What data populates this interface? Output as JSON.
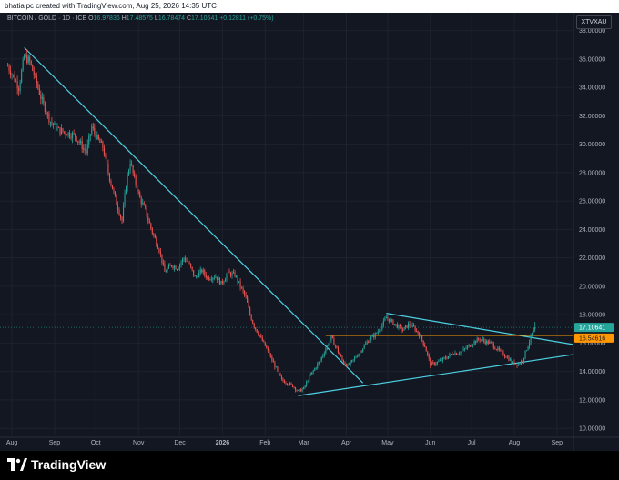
{
  "header": {
    "caption": "bhatiaipc created with TradingView.com, Aug 25, 2026 14:35 UTC"
  },
  "symbol": {
    "name": "BITCOIN / GOLD · 1D · ICE",
    "open_label": "O",
    "open": "16.97836",
    "high_label": "H",
    "high": "17.48575",
    "low_label": "L",
    "low": "16.78474",
    "close_label": "C",
    "close": "17.10641",
    "change": "+0.12811 (+0.75%)",
    "ticker": "XTVXAU"
  },
  "footer": {
    "brand": "TradingView"
  },
  "colors": {
    "background": "#131722",
    "up": "#26a69a",
    "down": "#ef5350",
    "trendline": "#4dd0e1",
    "support": "#ff9800",
    "price_badge": "#26a69a"
  },
  "chart_data": {
    "type": "candlestick",
    "title": "BITCOIN / GOLD · 1D · ICE",
    "xlabel": "",
    "ylabel": "",
    "ylim": [
      9.5,
      39.0
    ],
    "y_ticks": [
      "38.00000",
      "36.00000",
      "34.00000",
      "32.00000",
      "30.00000",
      "28.00000",
      "26.00000",
      "24.00000",
      "22.00000",
      "20.00000",
      "18.00000",
      "16.00000",
      "14.00000",
      "12.00000",
      "10.00000"
    ],
    "x_ticks": [
      {
        "label": "Aug",
        "day": 0
      },
      {
        "label": "Sep",
        "day": 31
      },
      {
        "label": "Oct",
        "day": 61
      },
      {
        "label": "Nov",
        "day": 92
      },
      {
        "label": "Dec",
        "day": 122
      },
      {
        "label": "2026",
        "day": 153
      },
      {
        "label": "Feb",
        "day": 184
      },
      {
        "label": "Mar",
        "day": 212
      },
      {
        "label": "Apr",
        "day": 243
      },
      {
        "label": "May",
        "day": 273
      },
      {
        "label": "Jun",
        "day": 304
      },
      {
        "label": "Jul",
        "day": 334
      },
      {
        "label": "Aug",
        "day": 365
      },
      {
        "label": "Sep",
        "day": 396
      }
    ],
    "x_range_days": [
      -6,
      408
    ],
    "grid": true,
    "price_path": [
      [
        -3,
        35.5
      ],
      [
        2,
        34.6
      ],
      [
        5,
        34.0
      ],
      [
        9,
        36.2
      ],
      [
        13,
        35.8
      ],
      [
        17,
        34.6
      ],
      [
        22,
        33.0
      ],
      [
        28,
        31.6
      ],
      [
        34,
        31.0
      ],
      [
        40,
        30.8
      ],
      [
        46,
        30.6
      ],
      [
        50,
        30.0
      ],
      [
        54,
        29.4
      ],
      [
        58,
        31.2
      ],
      [
        62,
        30.4
      ],
      [
        66,
        29.8
      ],
      [
        70,
        28.0
      ],
      [
        75,
        26.2
      ],
      [
        80,
        24.6
      ],
      [
        83,
        27.2
      ],
      [
        86,
        28.8
      ],
      [
        89,
        27.5
      ],
      [
        93,
        26.2
      ],
      [
        97,
        25.3
      ],
      [
        102,
        23.8
      ],
      [
        107,
        22.6
      ],
      [
        111,
        21.0
      ],
      [
        116,
        21.5
      ],
      [
        120,
        21.3
      ],
      [
        125,
        22.0
      ],
      [
        129,
        21.5
      ],
      [
        133,
        20.6
      ],
      [
        138,
        21.1
      ],
      [
        142,
        20.6
      ],
      [
        148,
        20.7
      ],
      [
        152,
        20.2
      ],
      [
        157,
        20.9
      ],
      [
        162,
        20.8
      ],
      [
        166,
        20.0
      ],
      [
        170,
        19.2
      ],
      [
        173,
        18.0
      ],
      [
        176,
        17.2
      ],
      [
        180,
        16.5
      ],
      [
        184,
        15.8
      ],
      [
        188,
        15.0
      ],
      [
        192,
        14.2
      ],
      [
        196,
        13.4
      ],
      [
        200,
        13.2
      ],
      [
        204,
        13.0
      ],
      [
        208,
        12.6
      ],
      [
        212,
        12.8
      ],
      [
        216,
        13.6
      ],
      [
        220,
        14.2
      ],
      [
        224,
        14.8
      ],
      [
        228,
        15.6
      ],
      [
        232,
        16.4
      ],
      [
        236,
        15.6
      ],
      [
        240,
        14.8
      ],
      [
        244,
        14.4
      ],
      [
        248,
        14.8
      ],
      [
        252,
        15.3
      ],
      [
        256,
        15.8
      ],
      [
        260,
        16.3
      ],
      [
        264,
        16.6
      ],
      [
        268,
        17.1
      ],
      [
        272,
        17.8
      ],
      [
        276,
        17.5
      ],
      [
        280,
        17.2
      ],
      [
        284,
        16.9
      ],
      [
        288,
        17.3
      ],
      [
        292,
        17.1
      ],
      [
        296,
        16.6
      ],
      [
        300,
        15.8
      ],
      [
        304,
        14.5
      ],
      [
        308,
        14.6
      ],
      [
        312,
        14.8
      ],
      [
        316,
        15.0
      ],
      [
        320,
        15.3
      ],
      [
        324,
        15.3
      ],
      [
        328,
        15.5
      ],
      [
        332,
        15.8
      ],
      [
        336,
        16.1
      ],
      [
        340,
        16.3
      ],
      [
        344,
        16.1
      ],
      [
        348,
        16.0
      ],
      [
        352,
        15.6
      ],
      [
        356,
        15.3
      ],
      [
        360,
        15.0
      ],
      [
        364,
        14.6
      ],
      [
        368,
        14.5
      ],
      [
        371,
        14.8
      ],
      [
        374,
        15.6
      ],
      [
        377,
        16.4
      ],
      [
        379,
        16.98
      ]
    ],
    "trendlines": [
      {
        "name": "descending-resistance",
        "points": [
          [
            9,
            36.8
          ],
          [
            255,
            13.2
          ]
        ]
      },
      {
        "name": "ascending-support",
        "points": [
          [
            208,
            12.3
          ],
          [
            408,
            15.2
          ]
        ]
      },
      {
        "name": "triangle-upper",
        "points": [
          [
            272,
            18.1
          ],
          [
            408,
            15.9
          ]
        ]
      }
    ],
    "horizontal_level": {
      "value": 16.54616,
      "from_day": 228,
      "label": "16.54616"
    },
    "last_price": {
      "value": 17.10641,
      "label": "17.10641"
    }
  }
}
